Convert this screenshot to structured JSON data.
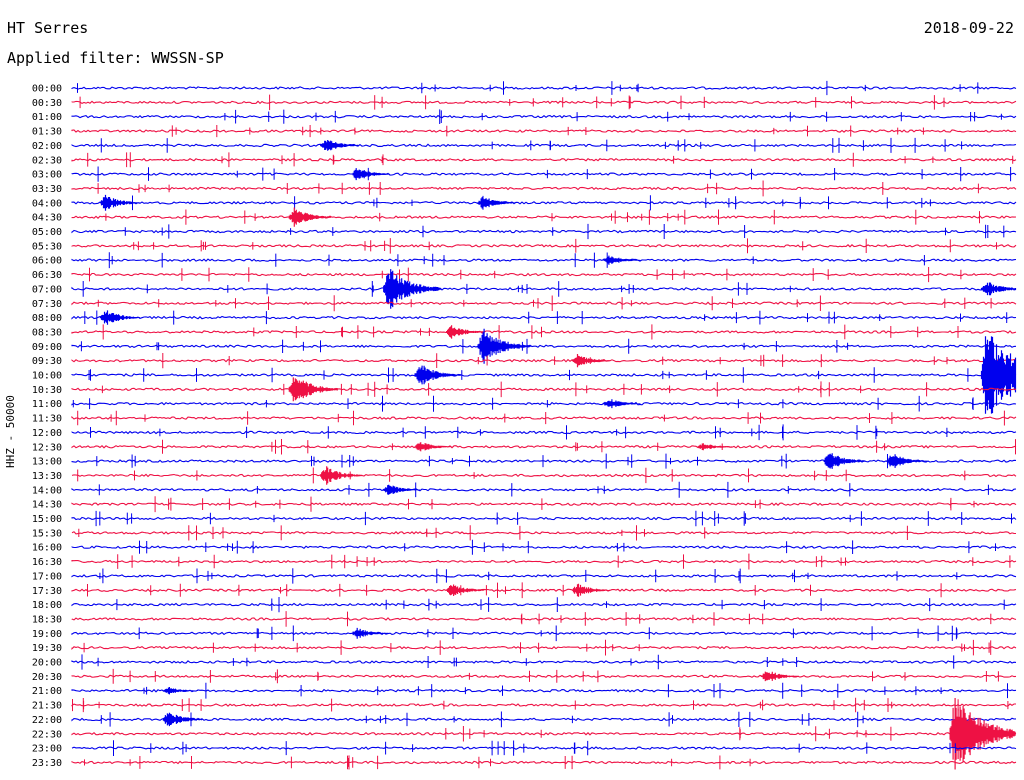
{
  "header": {
    "station": "HT Serres",
    "date": "2018-09-22",
    "filter_label": "Applied filter: WWSSN-SP",
    "channel_label": "HHZ - 50000"
  },
  "chart_data": {
    "type": "line",
    "title": "HT Serres",
    "ylabel": "HHZ - 50000",
    "row_labels": [
      "00:00",
      "00:30",
      "01:00",
      "01:30",
      "02:00",
      "02:30",
      "03:00",
      "03:30",
      "04:00",
      "04:30",
      "05:00",
      "05:30",
      "06:00",
      "06:30",
      "07:00",
      "07:30",
      "08:00",
      "08:30",
      "09:00",
      "09:30",
      "10:00",
      "10:30",
      "11:00",
      "11:30",
      "12:00",
      "12:30",
      "13:00",
      "13:30",
      "14:00",
      "14:30",
      "15:00",
      "15:30",
      "16:00",
      "16:30",
      "17:00",
      "17:30",
      "18:00",
      "18:30",
      "19:00",
      "19:30",
      "20:00",
      "20:30",
      "21:00",
      "21:30",
      "22:00",
      "22:30",
      "23:00",
      "23:30"
    ],
    "colors": [
      "#0000ee",
      "#ee1144"
    ],
    "x_minutes_per_row": 30,
    "events": [
      {
        "row": "02:00",
        "minute": 8,
        "amp": 0.5
      },
      {
        "row": "03:00",
        "minute": 9,
        "amp": 0.5
      },
      {
        "row": "04:00",
        "minute": 1,
        "amp": 0.6
      },
      {
        "row": "04:00",
        "minute": 13,
        "amp": 0.5
      },
      {
        "row": "04:30",
        "minute": 7,
        "amp": 0.7
      },
      {
        "row": "06:00",
        "minute": 17,
        "amp": 0.4
      },
      {
        "row": "07:00",
        "minute": 10,
        "amp": 1.6
      },
      {
        "row": "07:00",
        "minute": 29,
        "amp": 0.6
      },
      {
        "row": "08:00",
        "minute": 1,
        "amp": 0.6
      },
      {
        "row": "08:30",
        "minute": 12,
        "amp": 0.5
      },
      {
        "row": "09:00",
        "minute": 13,
        "amp": 1.3
      },
      {
        "row": "09:30",
        "minute": 16,
        "amp": 0.5
      },
      {
        "row": "10:00",
        "minute": 11,
        "amp": 0.9
      },
      {
        "row": "10:00",
        "minute": 29,
        "amp": 3.5
      },
      {
        "row": "10:30",
        "minute": 7,
        "amp": 1.1
      },
      {
        "row": "11:00",
        "minute": 17,
        "amp": 0.4
      },
      {
        "row": "12:30",
        "minute": 11,
        "amp": 0.4
      },
      {
        "row": "12:30",
        "minute": 20,
        "amp": 0.3
      },
      {
        "row": "13:00",
        "minute": 24,
        "amp": 0.7
      },
      {
        "row": "13:00",
        "minute": 26,
        "amp": 0.6
      },
      {
        "row": "13:30",
        "minute": 8,
        "amp": 0.7
      },
      {
        "row": "14:00",
        "minute": 10,
        "amp": 0.4
      },
      {
        "row": "17:30",
        "minute": 12,
        "amp": 0.5
      },
      {
        "row": "17:30",
        "minute": 16,
        "amp": 0.5
      },
      {
        "row": "19:00",
        "minute": 9,
        "amp": 0.4
      },
      {
        "row": "20:30",
        "minute": 22,
        "amp": 0.5
      },
      {
        "row": "21:00",
        "minute": 3,
        "amp": 0.3
      },
      {
        "row": "22:00",
        "minute": 3,
        "amp": 0.6
      },
      {
        "row": "22:30",
        "minute": 28,
        "amp": 2.8
      }
    ]
  }
}
